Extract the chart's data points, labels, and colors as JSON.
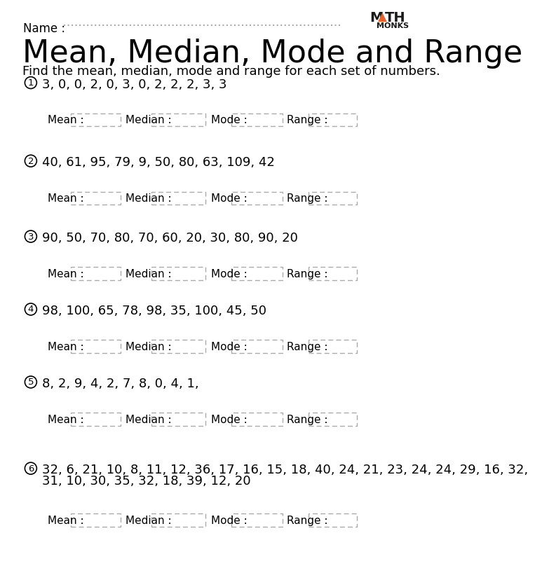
{
  "title": "Mean, Median, Mode and Range",
  "subtitle": "Find the mean, median, mode and range for each set of numbers.",
  "name_label": "Name : ",
  "logo_text_monks": "MONKS",
  "problems": [
    {
      "num": "1",
      "data": "3, 0, 0, 2, 0, 3, 0, 2, 2, 2, 3, 3"
    },
    {
      "num": "2",
      "data": "40, 61, 95, 79, 9, 50, 80, 63, 109, 42"
    },
    {
      "num": "3",
      "data": "90, 50, 70, 80, 70, 60, 20, 30, 80, 90, 20"
    },
    {
      "num": "4",
      "data": "98, 100, 65, 78, 98, 35, 100, 45, 50"
    },
    {
      "num": "5",
      "data": "8, 2, 9, 4, 2, 7, 8, 0, 4, 1,"
    },
    {
      "num": "6",
      "data": "32, 6, 21, 10, 8, 11, 12, 36, 17, 16, 15, 18, 40, 24, 21, 23, 24, 24, 29, 16, 32,",
      "data2": "31, 10, 30, 35, 32, 18, 39, 12, 20"
    }
  ],
  "answer_labels": [
    "Mean :",
    "Median :",
    "Mode :",
    "Range :"
  ],
  "bg_color": "#ffffff",
  "text_color": "#000000",
  "dash_color": "#aaaaaa",
  "orange_color": "#e8622a",
  "prob_y_starts": [
    130,
    275,
    415,
    550,
    685,
    845
  ],
  "answer_row_offsets": [
    68,
    68,
    68,
    68,
    68,
    95
  ]
}
